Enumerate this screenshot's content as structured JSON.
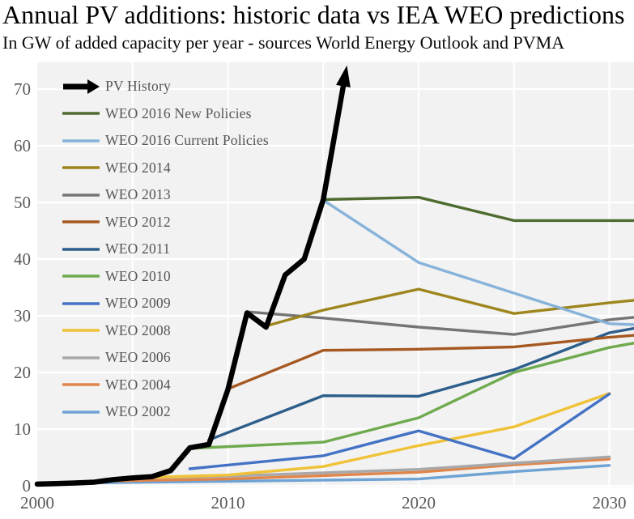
{
  "title": "Annual PV additions: historic data vs IEA WEO predictions",
  "subtitle": "In GW of added capacity per year - sources World Energy Outlook and PVMA",
  "colors": {
    "plot_background": "#f2f2f2",
    "gridline": "#ffffff",
    "axis_text": "#595959",
    "legend_text": "#555555",
    "title_text": "#000000"
  },
  "chart_data": {
    "type": "line",
    "title": "Annual PV additions: historic data vs IEA WEO predictions",
    "subtitle": "In GW of added capacity per year - sources World Energy Outlook and PVMA",
    "xlabel": "",
    "ylabel": "",
    "unit": "GW",
    "xlim": [
      2000,
      2031.3
    ],
    "ylim": [
      0,
      73
    ],
    "x_ticks": [
      2000,
      2010,
      2020,
      2030
    ],
    "y_ticks": [
      0,
      10,
      20,
      30,
      40,
      50,
      60,
      70
    ],
    "grid_years": [
      2005,
      2010,
      2015,
      2020,
      2025,
      2030
    ],
    "grid": true,
    "legend_position": "top-left",
    "series": [
      {
        "name": "PV History",
        "color": "#000000",
        "width": 6.5,
        "arrow_end": true,
        "points": [
          [
            2000,
            0.3
          ],
          [
            2001,
            0.4
          ],
          [
            2002,
            0.5
          ],
          [
            2003,
            0.65
          ],
          [
            2004,
            1.1
          ],
          [
            2005,
            1.4
          ],
          [
            2006,
            1.6
          ],
          [
            2007,
            2.7
          ],
          [
            2008,
            6.7
          ],
          [
            2009,
            7.3
          ],
          [
            2010,
            17
          ],
          [
            2011,
            30.5
          ],
          [
            2012,
            28
          ],
          [
            2013,
            37.2
          ],
          [
            2014,
            40
          ],
          [
            2015,
            50.5
          ],
          [
            2016.1,
            71.5
          ]
        ]
      },
      {
        "name": "WEO 2016 New Policies",
        "color": "#4e6b2f",
        "width": 3.4,
        "arrow_end": false,
        "points": [
          [
            2015,
            50.5
          ],
          [
            2020,
            50.9
          ],
          [
            2025,
            46.8
          ],
          [
            2030,
            46.8
          ],
          [
            2031.5,
            46.8
          ]
        ]
      },
      {
        "name": "WEO 2016 Current Policies",
        "color": "#87b3da",
        "width": 3.4,
        "arrow_end": false,
        "points": [
          [
            2015,
            50.4
          ],
          [
            2020,
            39.4
          ],
          [
            2025,
            34
          ],
          [
            2030,
            28.6
          ],
          [
            2031.5,
            28.4
          ]
        ]
      },
      {
        "name": "WEO 2014",
        "color": "#9e851d",
        "width": 3.4,
        "arrow_end": false,
        "points": [
          [
            2012,
            28.2
          ],
          [
            2015,
            31
          ],
          [
            2020,
            34.7
          ],
          [
            2025,
            30.4
          ],
          [
            2030,
            32.3
          ],
          [
            2031.5,
            32.8
          ]
        ]
      },
      {
        "name": "WEO 2013",
        "color": "#757575",
        "width": 3.4,
        "arrow_end": false,
        "points": [
          [
            2011,
            30.7
          ],
          [
            2015,
            29.6
          ],
          [
            2020,
            28
          ],
          [
            2025,
            26.7
          ],
          [
            2030,
            29.3
          ],
          [
            2031.5,
            29.8
          ]
        ]
      },
      {
        "name": "WEO 2012",
        "color": "#a65821",
        "width": 3.4,
        "arrow_end": false,
        "points": [
          [
            2010,
            17.1
          ],
          [
            2015,
            23.9
          ],
          [
            2020,
            24.1
          ],
          [
            2025,
            24.5
          ],
          [
            2030,
            26.2
          ],
          [
            2031.5,
            26.6
          ]
        ]
      },
      {
        "name": "WEO 2011",
        "color": "#2d5e8b",
        "width": 3.4,
        "arrow_end": false,
        "points": [
          [
            2009,
            8.1
          ],
          [
            2015,
            15.9
          ],
          [
            2020,
            15.8
          ],
          [
            2025,
            20.5
          ],
          [
            2030,
            27
          ],
          [
            2031.5,
            27.9
          ]
        ]
      },
      {
        "name": "WEO 2010",
        "color": "#6faa4e",
        "width": 3.4,
        "arrow_end": false,
        "points": [
          [
            2008,
            6.6
          ],
          [
            2015,
            7.7
          ],
          [
            2020,
            12
          ],
          [
            2025,
            20
          ],
          [
            2030,
            24.4
          ],
          [
            2031.5,
            25.3
          ]
        ]
      },
      {
        "name": "WEO 2009",
        "color": "#4472c4",
        "width": 3.4,
        "arrow_end": false,
        "points": [
          [
            2008,
            3
          ],
          [
            2015,
            5.3
          ],
          [
            2020,
            9.7
          ],
          [
            2025,
            4.8
          ],
          [
            2030,
            16.2
          ]
        ]
      },
      {
        "name": "WEO 2008",
        "color": "#efc237",
        "width": 3.4,
        "arrow_end": false,
        "points": [
          [
            2006,
            1.5
          ],
          [
            2010,
            1.9
          ],
          [
            2015,
            3.4
          ],
          [
            2020,
            7.1
          ],
          [
            2025,
            10.4
          ],
          [
            2030,
            16.3
          ]
        ]
      },
      {
        "name": "WEO 2006",
        "color": "#a8a8a8",
        "width": 3.4,
        "arrow_end": false,
        "points": [
          [
            2005,
            1.4
          ],
          [
            2010,
            1.7
          ],
          [
            2015,
            2.3
          ],
          [
            2020,
            2.9
          ],
          [
            2025,
            4.0
          ],
          [
            2030,
            5.1
          ]
        ]
      },
      {
        "name": "WEO 2004",
        "color": "#e0854a",
        "width": 3.4,
        "arrow_end": false,
        "points": [
          [
            2003,
            0.8
          ],
          [
            2010,
            1.2
          ],
          [
            2015,
            1.8
          ],
          [
            2020,
            2.4
          ],
          [
            2025,
            3.7
          ],
          [
            2030,
            4.7
          ]
        ]
      },
      {
        "name": "WEO 2002",
        "color": "#6ea3d4",
        "width": 3.4,
        "arrow_end": false,
        "points": [
          [
            2001,
            0.45
          ],
          [
            2010,
            0.8
          ],
          [
            2015,
            1.0
          ],
          [
            2020,
            1.2
          ],
          [
            2025,
            2.5
          ],
          [
            2030,
            3.6
          ]
        ]
      }
    ]
  }
}
